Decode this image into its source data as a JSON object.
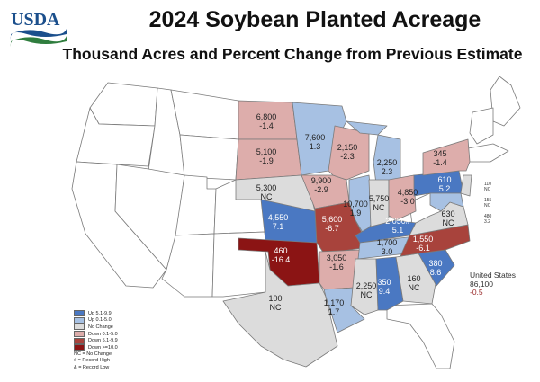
{
  "header": {
    "logo_text": "USDA",
    "title": "2024 Soybean Planted Acreage",
    "subtitle": "Thousand Acres and Percent Change from Previous Estimate"
  },
  "colors": {
    "up_5_1_9_9": "#4a78c2",
    "up_0_1_5_0": "#a7c1e3",
    "no_change": "#dcdcdc",
    "down_0_1_5_0": "#ddadab",
    "down_5_1_9_9": "#a8433c",
    "down_10_plus": "#8b1414",
    "non_producing": "#ffffff",
    "border": "#7a7a7a",
    "usda_blue": "#1b4f8c",
    "usda_green": "#2f7d3e"
  },
  "states": [
    {
      "name": "North Dakota",
      "acres": "6,800",
      "change": "-1.4",
      "category": "down_0_1_5_0"
    },
    {
      "name": "South Dakota",
      "acres": "5,100",
      "change": "-1.9",
      "category": "down_0_1_5_0"
    },
    {
      "name": "Nebraska",
      "acres": "5,300",
      "change": "NC",
      "category": "no_change"
    },
    {
      "name": "Kansas",
      "acres": "4,550",
      "change": "7.1",
      "category": "up_5_1_9_9"
    },
    {
      "name": "Oklahoma",
      "acres": "460",
      "change": "-16.4",
      "category": "down_10_plus"
    },
    {
      "name": "Texas",
      "acres": "100",
      "change": "NC",
      "category": "no_change"
    },
    {
      "name": "Minnesota",
      "acres": "7,600",
      "change": "1.3",
      "category": "up_0_1_5_0"
    },
    {
      "name": "Iowa",
      "acres": "9,900",
      "change": "-2.9",
      "category": "down_0_1_5_0"
    },
    {
      "name": "Missouri",
      "acres": "5,600",
      "change": "-6.7",
      "category": "down_5_1_9_9"
    },
    {
      "name": "Arkansas",
      "acres": "3,050",
      "change": "-1.6",
      "category": "down_0_1_5_0"
    },
    {
      "name": "Louisiana",
      "acres": "1,170",
      "change": "1.7",
      "category": "up_0_1_5_0"
    },
    {
      "name": "Wisconsin",
      "acres": "2,150",
      "change": "-2.3",
      "category": "down_0_1_5_0"
    },
    {
      "name": "Illinois",
      "acres": "10,700",
      "change": "1.9",
      "category": "up_0_1_5_0"
    },
    {
      "name": "Michigan",
      "acres": "2,250",
      "change": "2.3",
      "category": "up_0_1_5_0"
    },
    {
      "name": "Indiana",
      "acres": "5,750",
      "change": "NC",
      "category": "no_change"
    },
    {
      "name": "Ohio",
      "acres": "4,850",
      "change": "-3.0",
      "category": "down_0_1_5_0"
    },
    {
      "name": "Kentucky",
      "acres": "2,050#",
      "change": "5.1",
      "category": "up_5_1_9_9"
    },
    {
      "name": "Tennessee",
      "acres": "1,700",
      "change": "3.0",
      "category": "up_0_1_5_0"
    },
    {
      "name": "Mississippi",
      "acres": "2,250",
      "change": "NC",
      "category": "no_change"
    },
    {
      "name": "Alabama",
      "acres": "350",
      "change": "9.4",
      "category": "up_5_1_9_9"
    },
    {
      "name": "Georgia",
      "acres": "160",
      "change": "NC",
      "category": "no_change"
    },
    {
      "name": "South Carolina",
      "acres": "380",
      "change": "8.6",
      "category": "up_5_1_9_9"
    },
    {
      "name": "North Carolina",
      "acres": "1,550",
      "change": "-6.1",
      "category": "down_5_1_9_9"
    },
    {
      "name": "Virginia",
      "acres": "630",
      "change": "NC",
      "category": "no_change"
    },
    {
      "name": "Pennsylvania",
      "acres": "610",
      "change": "5.2",
      "category": "up_5_1_9_9"
    },
    {
      "name": "New York",
      "acres": "345",
      "change": "-1.4",
      "category": "down_0_1_5_0"
    },
    {
      "name": "New Jersey",
      "acres": "110",
      "change": "NC",
      "category": "no_change"
    },
    {
      "name": "Delaware",
      "acres": "155",
      "change": "NC",
      "category": "no_change"
    },
    {
      "name": "Maryland",
      "acres": "480",
      "change": "3.2",
      "category": "up_0_1_5_0"
    }
  ],
  "us_total": {
    "label": "United States",
    "acres": "86,100",
    "change": "-0.5"
  },
  "legend": {
    "items": [
      {
        "label": "Up 5.1-9.9",
        "category": "up_5_1_9_9"
      },
      {
        "label": "Up 0.1-5.0",
        "category": "up_0_1_5_0"
      },
      {
        "label": "No Change",
        "category": "no_change"
      },
      {
        "label": "Down 0.1-5.0",
        "category": "down_0_1_5_0"
      },
      {
        "label": "Down 5.1-9.9",
        "category": "down_5_1_9_9"
      },
      {
        "label": "Down >=10.0",
        "category": "down_10_plus"
      }
    ],
    "notes": [
      "NC = No Change",
      "# = Record High",
      "& = Record Low"
    ]
  }
}
